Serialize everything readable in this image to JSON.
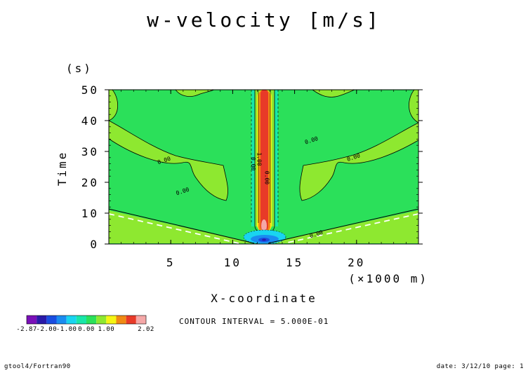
{
  "chart_data": {
    "type": "heatmap",
    "title": "w-velocity [m/s]",
    "xlabel": "X-coordinate",
    "xunit": "(×1000 m)",
    "ylabel": "Time",
    "yunit": "(s)",
    "xlim": [
      0,
      25
    ],
    "ylim": [
      0,
      50
    ],
    "xticks": [
      "5",
      "10",
      "15",
      "20"
    ],
    "xtick_values": [
      5,
      10,
      15,
      20
    ],
    "yticks": [
      "0",
      "10",
      "20",
      "30",
      "40",
      "50"
    ],
    "ytick_values": [
      0,
      10,
      20,
      30,
      40,
      50
    ],
    "contour_labels": [
      {
        "text": "0.00",
        "x": 4.5,
        "y": 26.5
      },
      {
        "text": "0.00",
        "x": 6.0,
        "y": 16.5
      },
      {
        "text": "0.00",
        "x": 16.8,
        "y": 2.6
      },
      {
        "text": "0.00",
        "x": 16.4,
        "y": 33.0
      },
      {
        "text": "0.00",
        "x": 19.8,
        "y": 27.5
      },
      {
        "text": "0.00",
        "x": 11.5,
        "y": 26.0
      },
      {
        "text": "1.00",
        "x": 12.0,
        "y": 27.5
      },
      {
        "text": "0.00",
        "x": 12.6,
        "y": 21.5
      }
    ],
    "color_levels": [
      {
        "label": "-2.87",
        "color": "#7a10b8"
      },
      {
        "label": "",
        "color": "#2a1aa8"
      },
      {
        "label": "-2.00",
        "color": "#1a4de0"
      },
      {
        "label": "",
        "color": "#1a8cf0"
      },
      {
        "label": "-1.00",
        "color": "#19d4f0"
      },
      {
        "label": "",
        "color": "#19e6a8"
      },
      {
        "label": "0.00",
        "color": "#2be05a"
      },
      {
        "label": "",
        "color": "#8ee830"
      },
      {
        "label": "1.00",
        "color": "#f5f514"
      },
      {
        "label": "",
        "color": "#f08a14"
      },
      {
        "label": "",
        "color": "#e83a28"
      },
      {
        "label": "2.02",
        "color": "#f5a8a8"
      }
    ],
    "colorbar_labels": [
      "-2.87",
      "-2.00",
      "-1.00",
      "0.00",
      "1.00",
      "2.02"
    ]
  },
  "contour_interval": "CONTOUR INTERVAL = 5.000E-01",
  "footer": {
    "left": "gtool4/Fortran90",
    "right": "date: 3/12/10 page: 1"
  }
}
